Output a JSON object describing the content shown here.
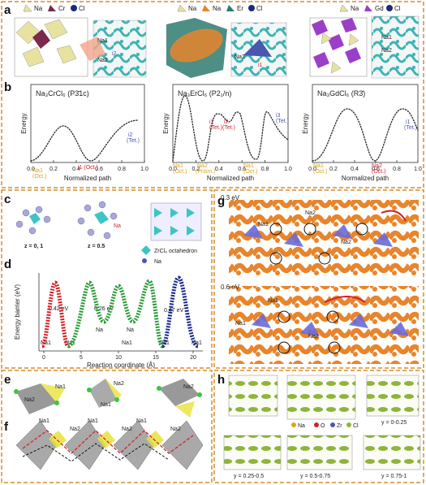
{
  "panel_a": {
    "letter": "a",
    "legend_1": [
      "Na",
      "Cr",
      "Cl"
    ],
    "legend_2": [
      "Na",
      "Na",
      "Er",
      "Cl"
    ],
    "legend_3": [
      "Na",
      "Gd",
      "Cl"
    ],
    "sites_1": [
      "Na1",
      "Na2",
      "i2"
    ],
    "sites_2": [
      "Na2",
      "i1"
    ],
    "sites_3": [
      "Na1",
      "Na2"
    ]
  },
  "panel_b": {
    "letter": "b",
    "y_label": "Energy",
    "x_label": "Normalized path",
    "x_ticks": [
      "0.0",
      "0.2",
      "0.4",
      "0.6",
      "0.8",
      "1.0"
    ],
    "charts": [
      {
        "title": "Na₃CrCl₆ (P3̄1c)",
        "annotations": [
          "Na1",
          "(Oct.)",
          "i1 (Oct.)",
          "i2",
          "(Tet.)"
        ]
      },
      {
        "title": "Na₃ErCl₆ (P2₁/n)",
        "annotations": [
          "Na1",
          "(Oct.)",
          "Na2",
          "(Prism.)",
          "i1",
          "(Tet.)",
          "i2",
          "(Tet.)",
          "i3",
          "(Tet.)",
          "Na1",
          "(Oct.)"
        ]
      },
      {
        "title": "Na₃GdCl₆ (R3̄)",
        "annotations": [
          "Na1",
          "(Oct.)",
          "Na2",
          "(Oct.)",
          "i1",
          "(Tet.)"
        ]
      }
    ]
  },
  "panel_c": {
    "letter": "c",
    "z_labels": [
      "z = 0, 1",
      "z = 0.5"
    ],
    "site": "Na",
    "legend": [
      "ZrCl₆ octahedron",
      "Na"
    ]
  },
  "panel_d": {
    "letter": "d",
    "y_label": "Energy barrier (eV)",
    "x_label": "Reaction coordinate (Å)",
    "x_ticks": [
      0,
      5,
      10,
      15,
      20
    ],
    "barriers": [
      "0.42 eV",
      "0.26 eV",
      "0.47 eV"
    ],
    "sites": [
      "Na1",
      "Na1",
      "Na",
      "Na1",
      "Na",
      "Na1",
      "Na1"
    ]
  },
  "panel_e": {
    "letter": "e",
    "labels": [
      "Na1",
      "Na2",
      "Na2",
      "Na1",
      "Na2"
    ]
  },
  "panel_f": {
    "letter": "f",
    "labels": [
      "Na1",
      "Na2",
      "Na1",
      "Na2",
      "Na1",
      "Na2"
    ]
  },
  "panel_g": {
    "letter": "g",
    "energies": [
      "0.3 eV",
      "0.6 eV"
    ],
    "labels": [
      "Na2",
      "Na1",
      "Na2",
      "Na1",
      "Na1",
      "Na2"
    ]
  },
  "panel_h": {
    "letter": "h",
    "legend": [
      "Na",
      "O",
      "Zr",
      "Cl"
    ],
    "slices": [
      "y = 0-0.25",
      "y = 0.25-0.5",
      "y = 0.5-0.75",
      "y = 0.75-1"
    ]
  }
}
